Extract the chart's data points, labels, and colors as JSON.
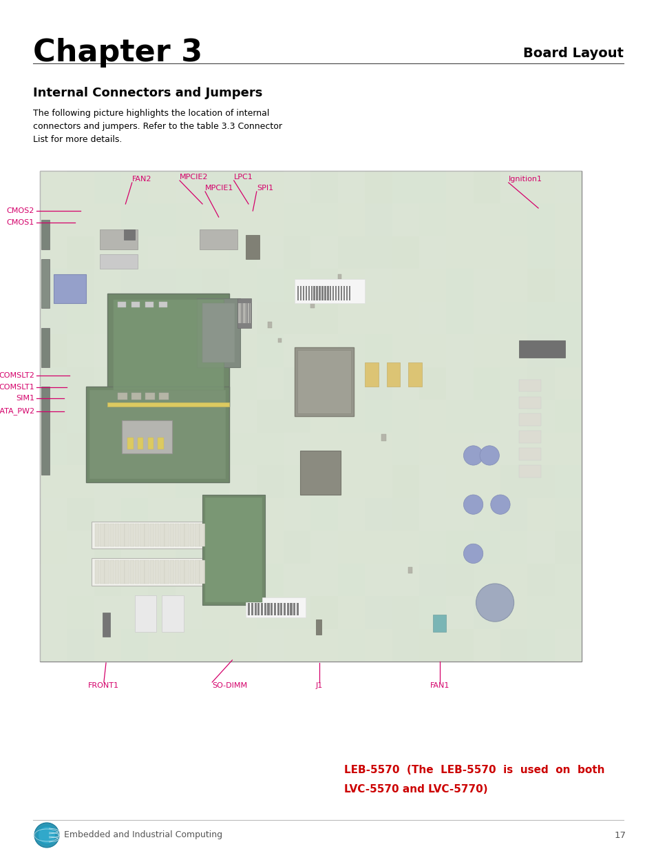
{
  "title": "Chapter 3",
  "subtitle": "Board Layout",
  "section_title": "Internal Connectors and Jumpers",
  "body_text": "The following picture highlights the location of internal\nconnectors and jumpers. Refer to the table 3.3 Connector\nList for more details.",
  "red_caption_line1": "LEB-5570  (The  LEB-5570  is  used  on  both",
  "red_caption_line2": "LVC-5570 and LVC-5770)",
  "footer_text": "Embedded and Industrial Computing",
  "page_number": "17",
  "bg_color": "#ffffff",
  "title_color": "#000000",
  "red_color": "#cc0000",
  "label_color": "#d4006a",
  "label_fontsize": 8.0,
  "board_bg": "#c8d8c0",
  "board_border": "#999999",
  "pcb_color": "#b0c8a8",
  "pcb_dark": "#788870",
  "pcb_green": "#3a6632",
  "pcb_green2": "#4a7a42"
}
